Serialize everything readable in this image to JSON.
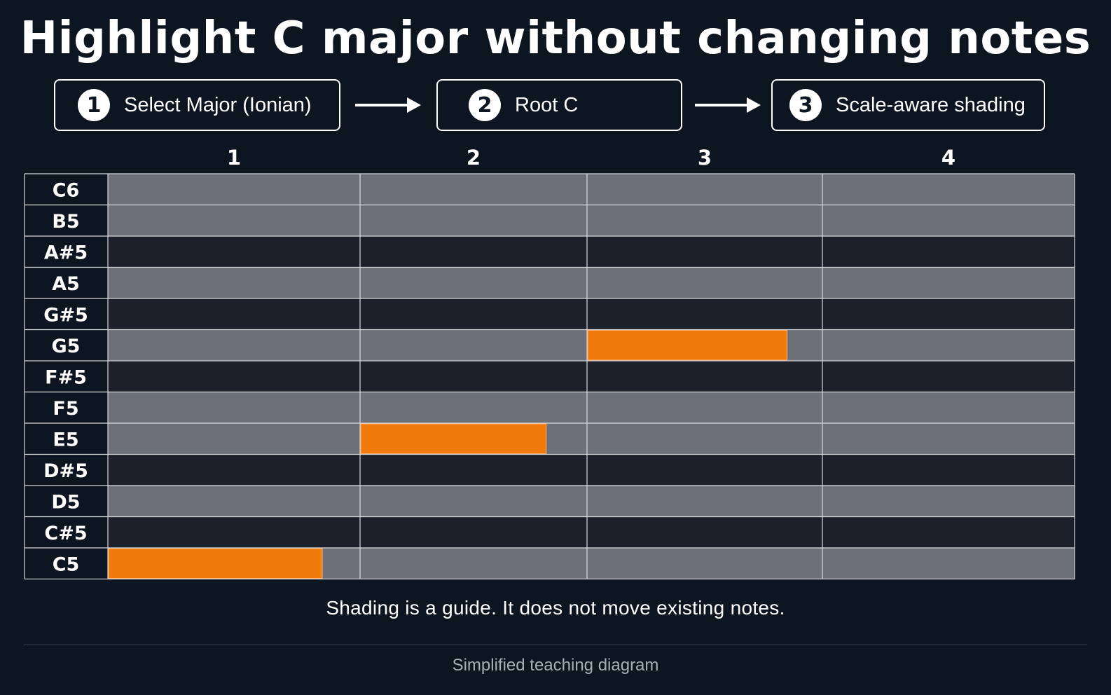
{
  "title": "Highlight C major without changing notes",
  "steps": [
    {
      "number": "1",
      "label": "Select Major (Ionian)"
    },
    {
      "number": "2",
      "label": "Root C"
    },
    {
      "number": "3",
      "label": "Scale-aware shading"
    }
  ],
  "piano_roll": {
    "beats": [
      "1",
      "2",
      "3",
      "4"
    ],
    "rows": [
      {
        "pitch": "C6",
        "in_scale": true
      },
      {
        "pitch": "B5",
        "in_scale": true
      },
      {
        "pitch": "A#5",
        "in_scale": false
      },
      {
        "pitch": "A5",
        "in_scale": true
      },
      {
        "pitch": "G#5",
        "in_scale": false
      },
      {
        "pitch": "G5",
        "in_scale": true
      },
      {
        "pitch": "F#5",
        "in_scale": false
      },
      {
        "pitch": "F5",
        "in_scale": true
      },
      {
        "pitch": "E5",
        "in_scale": true
      },
      {
        "pitch": "D#5",
        "in_scale": false
      },
      {
        "pitch": "D5",
        "in_scale": true
      },
      {
        "pitch": "C#5",
        "in_scale": false
      },
      {
        "pitch": "C5",
        "in_scale": true
      }
    ],
    "notes": [
      {
        "pitch": "C5",
        "beat_start": 1.0,
        "beat_end": 1.85
      },
      {
        "pitch": "E5",
        "beat_start": 2.0,
        "beat_end": 2.82
      },
      {
        "pitch": "G5",
        "beat_start": 3.0,
        "beat_end": 3.85
      }
    ],
    "colors": {
      "in_scale": "#6b7079",
      "out_of_scale": "#1b202a",
      "note": "#f07a0c",
      "grid_line": "#d8dadd",
      "label_bg": "#0d1520"
    }
  },
  "caption": "Shading is a guide. It does not move existing notes.",
  "footer": "Simplified teaching diagram"
}
